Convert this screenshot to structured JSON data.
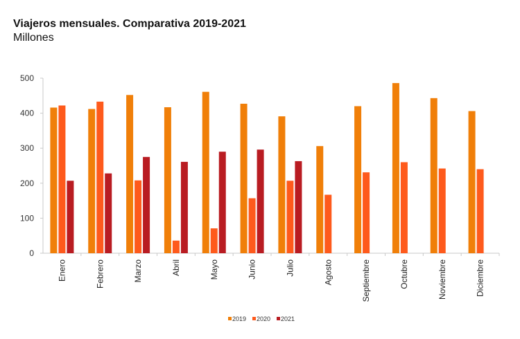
{
  "chart_data": {
    "type": "bar",
    "title": "Viajeros mensuales. Comparativa 2019-2021",
    "subtitle": "Millones",
    "xlabel": "",
    "ylabel": "Millones",
    "ylim": [
      0,
      500
    ],
    "yticks": [
      0,
      100,
      200,
      300,
      400,
      500
    ],
    "grid": false,
    "legend_position": "bottom-center",
    "categories": [
      "Enero",
      "Febrero",
      "Marzo",
      "Abril",
      "Mayo",
      "Junio",
      "Julio",
      "Agosto",
      "Septiembre",
      "Octubre",
      "Noviembre",
      "Diciembre"
    ],
    "series": [
      {
        "name": "2019",
        "color": "#F07F09",
        "values": [
          416,
          412,
          452,
          417,
          461,
          427,
          391,
          306,
          420,
          486,
          443,
          406
        ]
      },
      {
        "name": "2020",
        "color": "#FE5A1C",
        "values": [
          422,
          433,
          208,
          36,
          71,
          157,
          207,
          167,
          231,
          260,
          242,
          240
        ]
      },
      {
        "name": "2021",
        "color": "#B91C22",
        "values": [
          207,
          228,
          275,
          261,
          290,
          296,
          263,
          null,
          null,
          null,
          null,
          null
        ]
      }
    ]
  }
}
